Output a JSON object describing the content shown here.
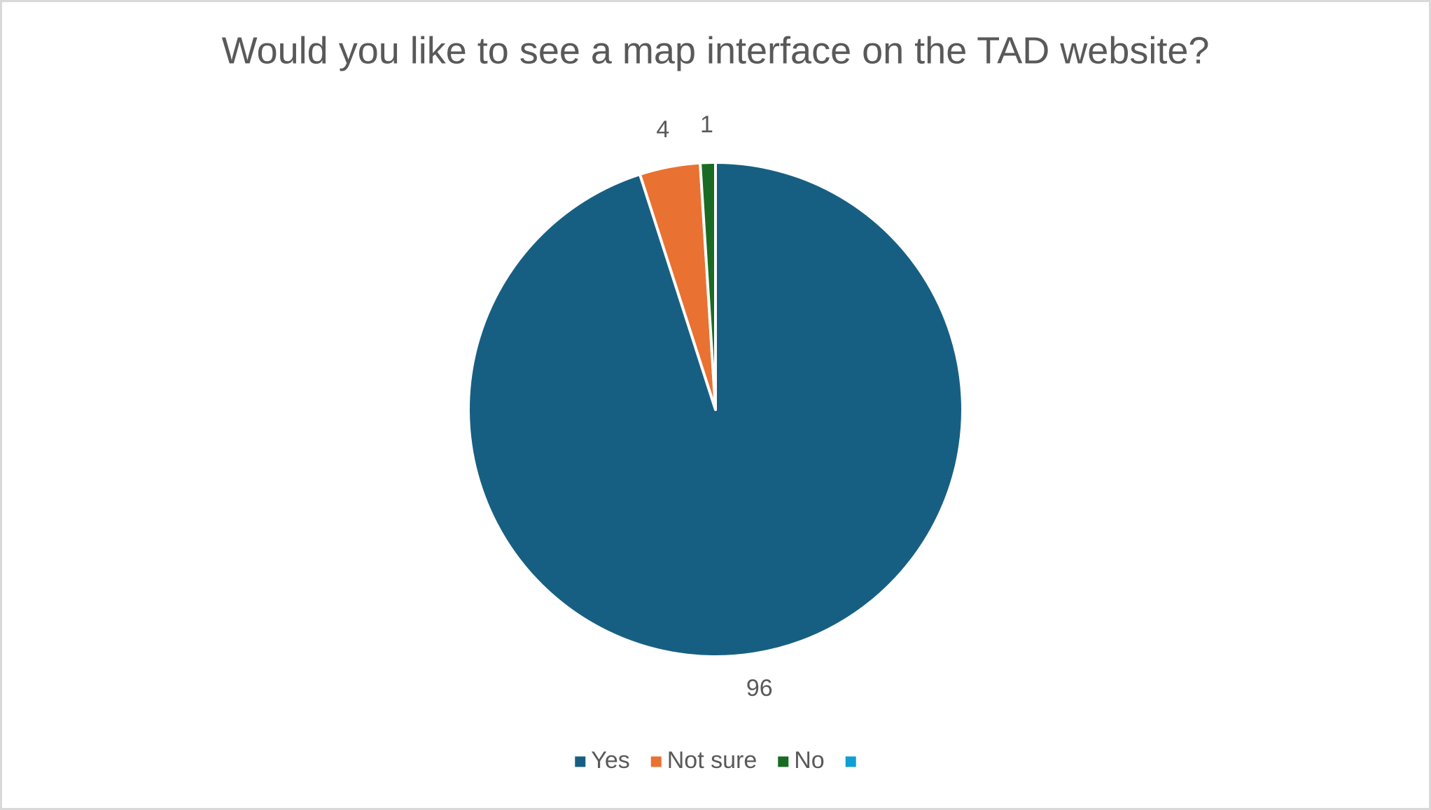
{
  "chart_data": {
    "type": "pie",
    "title": "Would you like to see a map interface on the TAD website?",
    "categories": [
      "Yes",
      "Not sure",
      "No",
      null
    ],
    "values": [
      96,
      4,
      1,
      0
    ],
    "colors": [
      "#175f82",
      "#e97132",
      "#196b24",
      "#0f9ed5"
    ],
    "legend": "bottom"
  }
}
